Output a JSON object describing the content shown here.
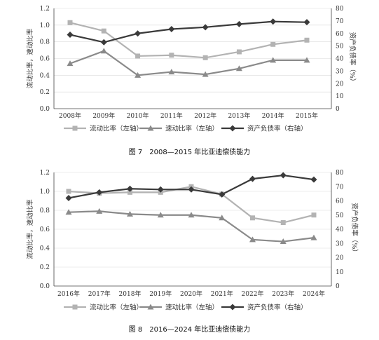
{
  "chart_data": [
    {
      "type": "line",
      "caption": "图 7　2008—2015 年比亚迪偿债能力",
      "categories": [
        "2008年",
        "2009年",
        "2010年",
        "2011年",
        "2012年",
        "2013年",
        "2014年",
        "2015年"
      ],
      "ylabel": "流动比率，速动比率",
      "y2label": "资产负债率（%）",
      "ylim": [
        0,
        1.2
      ],
      "y2lim": [
        0,
        80
      ],
      "yticks": [
        "0.0",
        "0.2",
        "0.4",
        "0.6",
        "0.8",
        "1.0",
        "1.2"
      ],
      "y2ticks": [
        "0",
        "10",
        "20",
        "30",
        "40",
        "50",
        "60",
        "70",
        "80"
      ],
      "grid": true,
      "legend_position": "bottom",
      "series": [
        {
          "name": "流动比率（左轴）",
          "axis": "left",
          "color": "#b3b3b3",
          "marker": "square",
          "values": [
            1.03,
            0.93,
            0.63,
            0.64,
            0.61,
            0.68,
            0.77,
            0.82
          ]
        },
        {
          "name": "速动比率（左轴）",
          "axis": "left",
          "color": "#8a8a8a",
          "marker": "triangle",
          "values": [
            0.54,
            0.69,
            0.4,
            0.44,
            0.41,
            0.48,
            0.58,
            0.58
          ]
        },
        {
          "name": "资产负债率（右轴）",
          "axis": "right",
          "color": "#3a3a3a",
          "marker": "diamond",
          "values": [
            59,
            53,
            60,
            63.5,
            65,
            67.5,
            69.5,
            69
          ]
        }
      ]
    },
    {
      "type": "line",
      "caption": "图 8　2016—2024 年比亚迪偿债能力",
      "categories": [
        "2016年",
        "2017年",
        "2018年",
        "2019年",
        "2020年",
        "2021年",
        "2022年",
        "2023年",
        "2024年"
      ],
      "ylabel": "流动比率，速动比率",
      "y2label": "资产负债率（%）",
      "ylim": [
        0,
        1.2
      ],
      "y2lim": [
        0,
        80
      ],
      "yticks": [
        "0.0",
        "0.2",
        "0.4",
        "0.6",
        "0.8",
        "1.0",
        "1.2"
      ],
      "y2ticks": [
        "0",
        "10",
        "20",
        "30",
        "40",
        "50",
        "60",
        "70",
        "80"
      ],
      "grid": true,
      "legend_position": "bottom",
      "series": [
        {
          "name": "流动比率（左轴）",
          "axis": "left",
          "color": "#b3b3b3",
          "marker": "square",
          "values": [
            1.0,
            0.98,
            0.99,
            0.99,
            1.05,
            0.97,
            0.72,
            0.67,
            0.75
          ]
        },
        {
          "name": "速动比率（左轴）",
          "axis": "left",
          "color": "#8a8a8a",
          "marker": "triangle",
          "values": [
            0.78,
            0.79,
            0.76,
            0.75,
            0.75,
            0.72,
            0.49,
            0.47,
            0.51
          ]
        },
        {
          "name": "资产负债率（右轴）",
          "axis": "right",
          "color": "#3a3a3a",
          "marker": "diamond",
          "values": [
            62,
            66,
            68.5,
            68,
            68,
            64.5,
            75.5,
            78,
            75
          ]
        }
      ]
    }
  ]
}
